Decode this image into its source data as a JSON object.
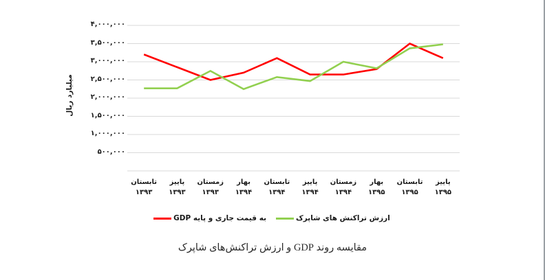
{
  "caption": "مقایسه روند GDP و ارزش تراکنش‌های شاپرک",
  "colors": {
    "gdp_line": "#ff0000",
    "shaparak_line": "#92d050",
    "gridline": "#d9d9d9",
    "text": "#1a1a1a",
    "page_edge": "#9aa0a4"
  },
  "chart_data": {
    "type": "line",
    "title": "",
    "ylabel": "میلیارد ریال",
    "xlabel": "",
    "ylim": [
      0,
      4000000
    ],
    "ytick_step": 500000,
    "ytick_labels_top_to_bottom": [
      "۴,۰۰۰,۰۰۰",
      "۳,۵۰۰,۰۰۰",
      "۳,۰۰۰,۰۰۰",
      "۲,۵۰۰,۰۰۰",
      "۲,۰۰۰,۰۰۰",
      "۱,۵۰۰,۰۰۰",
      "۱,۰۰۰,۰۰۰",
      "۵۰۰,۰۰۰"
    ],
    "grid": true,
    "legend_position": "bottom",
    "categories": [
      {
        "season": "تابستان",
        "year": "۱۳۹۳"
      },
      {
        "season": "پاییز",
        "year": "۱۳۹۳"
      },
      {
        "season": "زمستان",
        "year": "۱۳۹۳"
      },
      {
        "season": "بهار",
        "year": "۱۳۹۴"
      },
      {
        "season": "تابستان",
        "year": "۱۳۹۴"
      },
      {
        "season": "پاییز",
        "year": "۱۳۹۴"
      },
      {
        "season": "زمستان",
        "year": "۱۳۹۴"
      },
      {
        "season": "بهار",
        "year": "۱۳۹۵"
      },
      {
        "season": "تابستان",
        "year": "۱۳۹۵"
      },
      {
        "season": "پاییز",
        "year": "۱۳۹۵"
      }
    ],
    "series": [
      {
        "id": "gdp",
        "name": "GDP به قیمت جاری و پایه",
        "color": "#ff0000",
        "values": [
          3200000,
          2850000,
          2500000,
          2700000,
          3100000,
          2650000,
          2650000,
          2800000,
          3500000,
          3100000
        ]
      },
      {
        "id": "shaparak",
        "name": "ارزش تراکنش های شاپرک",
        "color": "#92d050",
        "values": [
          2270000,
          2270000,
          2750000,
          2250000,
          2580000,
          2470000,
          3000000,
          2820000,
          3370000,
          3480000
        ]
      }
    ]
  }
}
